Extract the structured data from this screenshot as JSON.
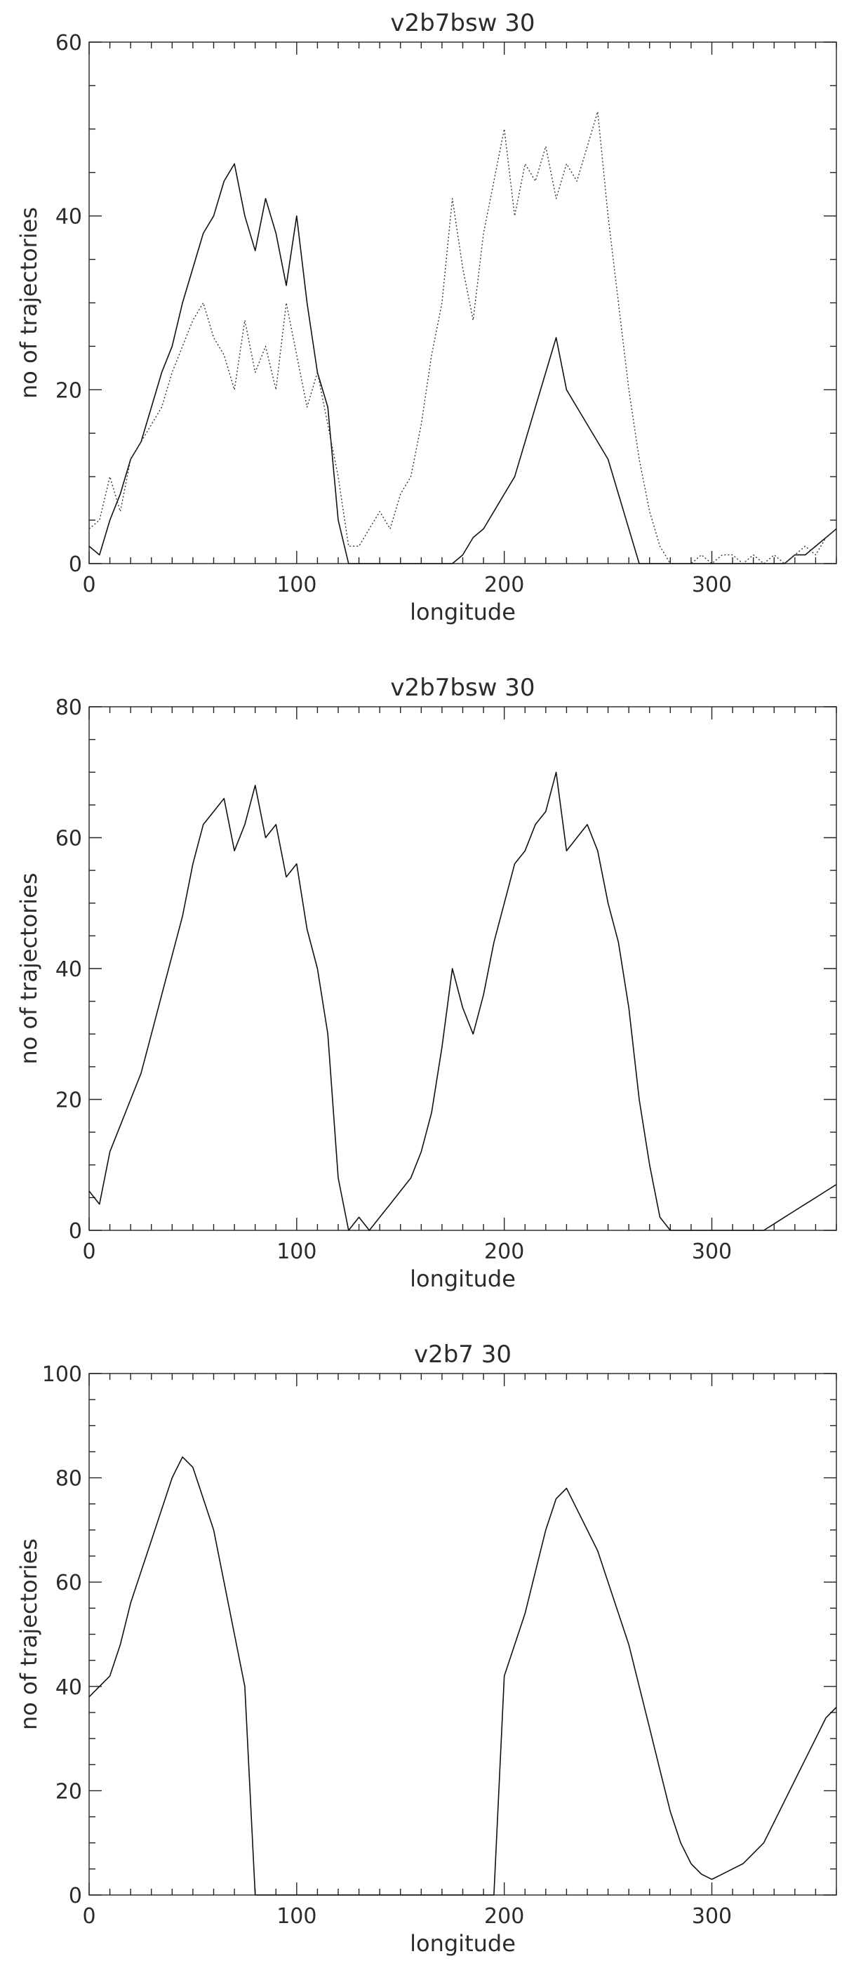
{
  "chart_data": [
    {
      "type": "line",
      "title": "v2b7bsw 30",
      "xlabel": "longitude",
      "ylabel": "no of trajectories",
      "xlim": [
        0,
        360
      ],
      "ylim": [
        0,
        60
      ],
      "xticks": [
        0,
        100,
        200,
        300
      ],
      "yticks": [
        0,
        20,
        40,
        60
      ],
      "xtick_labels": [
        "0",
        "100",
        "200",
        "300"
      ],
      "ytick_labels": [
        "0",
        "20",
        "40",
        "60"
      ],
      "series": [
        {
          "style": "solid",
          "x": [
            0,
            5,
            10,
            15,
            20,
            25,
            30,
            35,
            40,
            45,
            50,
            55,
            60,
            65,
            70,
            75,
            80,
            85,
            90,
            95,
            100,
            105,
            110,
            115,
            120,
            125,
            130,
            135,
            140,
            145,
            150,
            155,
            160,
            165,
            170,
            175,
            180,
            185,
            190,
            195,
            200,
            205,
            210,
            215,
            220,
            225,
            230,
            235,
            240,
            245,
            250,
            255,
            260,
            265,
            270,
            275,
            280,
            285,
            290,
            295,
            300,
            305,
            310,
            315,
            320,
            325,
            330,
            335,
            340,
            345,
            350,
            355,
            360
          ],
          "y": [
            2,
            1,
            5,
            8,
            12,
            14,
            18,
            22,
            25,
            30,
            34,
            38,
            40,
            44,
            46,
            40,
            36,
            42,
            38,
            32,
            40,
            30,
            22,
            18,
            5,
            0,
            0,
            0,
            0,
            0,
            0,
            0,
            0,
            0,
            0,
            0,
            1,
            3,
            4,
            6,
            8,
            10,
            14,
            18,
            22,
            26,
            20,
            18,
            16,
            14,
            12,
            8,
            4,
            0,
            0,
            0,
            0,
            0,
            0,
            0,
            0,
            0,
            0,
            0,
            0,
            0,
            0,
            0,
            1,
            1,
            2,
            3,
            4
          ]
        },
        {
          "style": "dotted",
          "x": [
            0,
            5,
            10,
            15,
            20,
            25,
            30,
            35,
            40,
            45,
            50,
            55,
            60,
            65,
            70,
            75,
            80,
            85,
            90,
            95,
            100,
            105,
            110,
            115,
            120,
            125,
            130,
            135,
            140,
            145,
            150,
            155,
            160,
            165,
            170,
            175,
            180,
            185,
            190,
            195,
            200,
            205,
            210,
            215,
            220,
            225,
            230,
            235,
            240,
            245,
            250,
            255,
            260,
            265,
            270,
            275,
            280,
            285,
            290,
            295,
            300,
            305,
            310,
            315,
            320,
            325,
            330,
            335,
            340,
            345,
            350,
            355,
            360
          ],
          "y": [
            4,
            5,
            10,
            6,
            12,
            14,
            16,
            18,
            22,
            25,
            28,
            30,
            26,
            24,
            20,
            28,
            22,
            25,
            20,
            30,
            24,
            18,
            22,
            16,
            10,
            2,
            2,
            4,
            6,
            4,
            8,
            10,
            16,
            24,
            30,
            42,
            34,
            28,
            38,
            44,
            50,
            40,
            46,
            44,
            48,
            42,
            46,
            44,
            48,
            52,
            40,
            30,
            20,
            12,
            6,
            2,
            0,
            0,
            0,
            1,
            0,
            1,
            1,
            0,
            1,
            0,
            1,
            0,
            1,
            2,
            1,
            3,
            4
          ]
        }
      ]
    },
    {
      "type": "line",
      "title": "v2b7bsw 30",
      "xlabel": "longitude",
      "ylabel": "no of trajectories",
      "xlim": [
        0,
        360
      ],
      "ylim": [
        0,
        80
      ],
      "xticks": [
        0,
        100,
        200,
        300
      ],
      "yticks": [
        0,
        20,
        40,
        60,
        80
      ],
      "xtick_labels": [
        "0",
        "100",
        "200",
        "300"
      ],
      "ytick_labels": [
        "0",
        "20",
        "40",
        "60",
        "80"
      ],
      "series": [
        {
          "style": "solid",
          "x": [
            0,
            5,
            10,
            15,
            20,
            25,
            30,
            35,
            40,
            45,
            50,
            55,
            60,
            65,
            70,
            75,
            80,
            85,
            90,
            95,
            100,
            105,
            110,
            115,
            120,
            125,
            130,
            135,
            140,
            145,
            150,
            155,
            160,
            165,
            170,
            175,
            180,
            185,
            190,
            195,
            200,
            205,
            210,
            215,
            220,
            225,
            230,
            235,
            240,
            245,
            250,
            255,
            260,
            265,
            270,
            275,
            280,
            285,
            290,
            295,
            300,
            305,
            310,
            315,
            320,
            325,
            330,
            335,
            340,
            345,
            350,
            355,
            360
          ],
          "y": [
            6,
            4,
            12,
            16,
            20,
            24,
            30,
            36,
            42,
            48,
            56,
            62,
            64,
            66,
            58,
            62,
            68,
            60,
            62,
            54,
            56,
            46,
            40,
            30,
            8,
            0,
            2,
            0,
            2,
            4,
            6,
            8,
            12,
            18,
            28,
            40,
            34,
            30,
            36,
            44,
            50,
            56,
            58,
            62,
            64,
            70,
            58,
            60,
            62,
            58,
            50,
            44,
            34,
            20,
            10,
            2,
            0,
            0,
            0,
            0,
            0,
            0,
            0,
            0,
            0,
            0,
            1,
            2,
            3,
            4,
            5,
            6,
            7
          ]
        }
      ]
    },
    {
      "type": "line",
      "title": "v2b7 30",
      "xlabel": "longitude",
      "ylabel": "no of trajectories",
      "xlim": [
        0,
        360
      ],
      "ylim": [
        0,
        100
      ],
      "xticks": [
        0,
        100,
        200,
        300
      ],
      "yticks": [
        0,
        20,
        40,
        60,
        80,
        100
      ],
      "xtick_labels": [
        "0",
        "100",
        "200",
        "300"
      ],
      "ytick_labels": [
        "0",
        "20",
        "40",
        "60",
        "80",
        "100"
      ],
      "series": [
        {
          "style": "solid",
          "x": [
            0,
            5,
            10,
            15,
            20,
            25,
            30,
            35,
            40,
            45,
            50,
            55,
            60,
            65,
            70,
            75,
            80,
            85,
            90,
            95,
            100,
            105,
            110,
            115,
            120,
            125,
            130,
            135,
            140,
            145,
            150,
            155,
            160,
            165,
            170,
            175,
            180,
            185,
            190,
            195,
            200,
            205,
            210,
            215,
            220,
            225,
            230,
            235,
            240,
            245,
            250,
            255,
            260,
            265,
            270,
            275,
            280,
            285,
            290,
            295,
            300,
            305,
            310,
            315,
            320,
            325,
            330,
            335,
            340,
            345,
            350,
            355,
            360
          ],
          "y": [
            38,
            40,
            42,
            48,
            56,
            62,
            68,
            74,
            80,
            84,
            82,
            76,
            70,
            60,
            50,
            40,
            0,
            0,
            0,
            0,
            0,
            0,
            0,
            0,
            0,
            0,
            0,
            0,
            0,
            0,
            0,
            0,
            0,
            0,
            0,
            0,
            0,
            0,
            0,
            0,
            42,
            48,
            54,
            62,
            70,
            76,
            78,
            74,
            70,
            66,
            60,
            54,
            48,
            40,
            32,
            24,
            16,
            10,
            6,
            4,
            3,
            4,
            5,
            6,
            8,
            10,
            14,
            18,
            22,
            26,
            30,
            34,
            36
          ]
        }
      ]
    }
  ]
}
